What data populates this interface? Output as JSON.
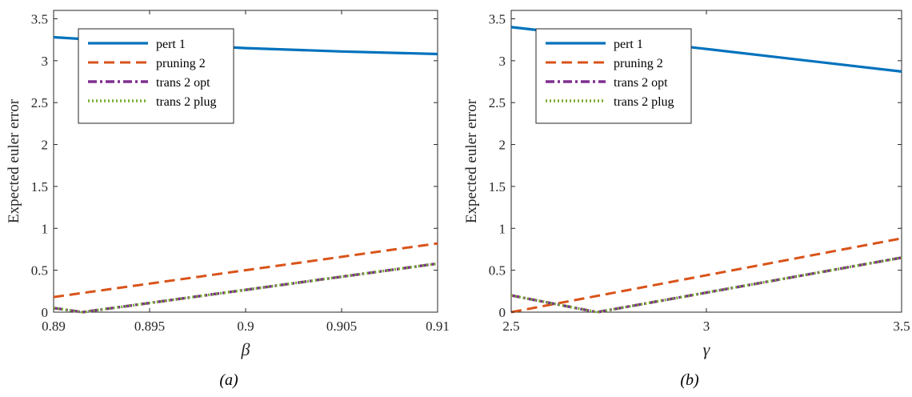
{
  "chart_data": [
    {
      "type": "line",
      "panel_label": "(a)",
      "xlabel": "β",
      "ylabel": "Expected euler error",
      "xlim": [
        0.89,
        0.91
      ],
      "ylim": [
        0,
        3.6
      ],
      "xticks": [
        0.89,
        0.895,
        0.9,
        0.905,
        0.91
      ],
      "xtick_labels": [
        "0.89",
        "0.895",
        "0.9",
        "0.905",
        "0.91"
      ],
      "yticks": [
        0,
        0.5,
        1,
        1.5,
        2,
        2.5,
        3,
        3.5
      ],
      "ytick_labels": [
        "0",
        "0.5",
        "1",
        "1.5",
        "2",
        "2.5",
        "3",
        "3.5"
      ],
      "grid": false,
      "legend_position": "top-left",
      "series": [
        {
          "name": "pert 1",
          "color": "#0072BD",
          "style": "solid",
          "x": [
            0.89,
            0.895,
            0.9,
            0.905,
            0.91
          ],
          "y": [
            3.28,
            3.21,
            3.15,
            3.11,
            3.08
          ]
        },
        {
          "name": "pruning 2",
          "color": "#D95319",
          "style": "dashed",
          "x": [
            0.89,
            0.91
          ],
          "y": [
            0.18,
            0.82
          ]
        },
        {
          "name": "trans 2 opt",
          "color": "#7E2F8E",
          "style": "dashdot",
          "x": [
            0.89,
            0.8915,
            0.91
          ],
          "y": [
            0.05,
            0.0,
            0.58
          ]
        },
        {
          "name": "trans 2 plug",
          "color": "#77AC30",
          "style": "dotted",
          "x": [
            0.89,
            0.8915,
            0.91
          ],
          "y": [
            0.05,
            0.0,
            0.58
          ]
        }
      ]
    },
    {
      "type": "line",
      "panel_label": "(b)",
      "xlabel": "γ",
      "ylabel": "Expected euler error",
      "xlim": [
        2.5,
        3.5
      ],
      "ylim": [
        0,
        3.6
      ],
      "xticks": [
        2.5,
        3,
        3.5
      ],
      "xtick_labels": [
        "2.5",
        "3",
        "3.5"
      ],
      "yticks": [
        0,
        0.5,
        1,
        1.5,
        2,
        2.5,
        3,
        3.5
      ],
      "ytick_labels": [
        "0",
        "0.5",
        "1",
        "1.5",
        "2",
        "2.5",
        "3",
        "3.5"
      ],
      "grid": false,
      "legend_position": "top-left",
      "series": [
        {
          "name": "pert 1",
          "color": "#0072BD",
          "style": "solid",
          "x": [
            2.5,
            3.0,
            3.5
          ],
          "y": [
            3.4,
            3.14,
            2.87
          ]
        },
        {
          "name": "pruning 2",
          "color": "#D95319",
          "style": "dashed",
          "x": [
            2.5,
            3.5
          ],
          "y": [
            0.0,
            0.88
          ]
        },
        {
          "name": "trans 2 opt",
          "color": "#7E2F8E",
          "style": "dashdot",
          "x": [
            2.5,
            2.72,
            3.5
          ],
          "y": [
            0.2,
            0.0,
            0.65
          ]
        },
        {
          "name": "trans 2 plug",
          "color": "#77AC30",
          "style": "dotted",
          "x": [
            2.5,
            2.72,
            3.5
          ],
          "y": [
            0.2,
            0.0,
            0.65
          ]
        }
      ]
    }
  ]
}
